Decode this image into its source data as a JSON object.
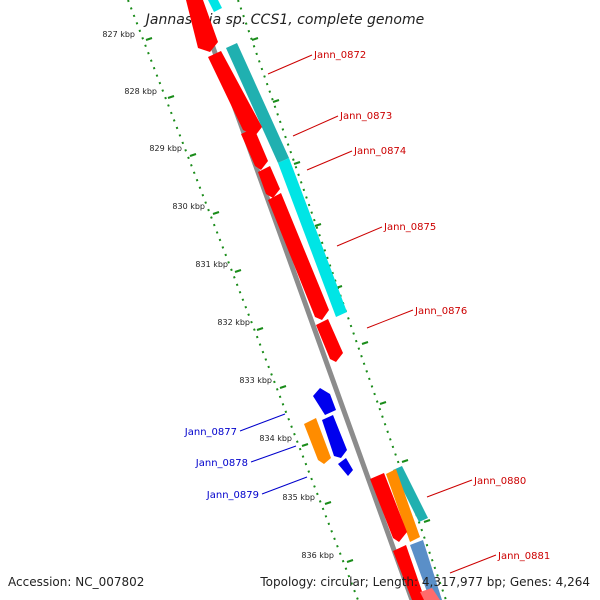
{
  "title": "Jannaschia sp. CCS1, complete genome",
  "footer": {
    "accession": "Accession: NC_007802",
    "summary": "Topology: circular; Length: 4,317,977 bp; Genes: 4,264"
  },
  "colors": {
    "background": "#ffffff",
    "backbone": "#8c8c8c",
    "tick_track": "#1a8c1a",
    "cds": "#ff0000",
    "cds_light": "#ff6b6b",
    "rna": "#0000ee",
    "orange": "#ff8c00",
    "cyan": "#00e5e5",
    "teal": "#20b0b0",
    "steelblue": "#5a8fc8",
    "label_red": "#cc0000",
    "label_blue": "#0000cc"
  },
  "ticks": [
    {
      "label": "827 kbp"
    },
    {
      "label": "828 kbp"
    },
    {
      "label": "829 kbp"
    },
    {
      "label": "830 kbp"
    },
    {
      "label": "831 kbp"
    },
    {
      "label": "832 kbp"
    },
    {
      "label": "833 kbp"
    },
    {
      "label": "834 kbp"
    },
    {
      "label": "835 kbp"
    },
    {
      "label": "836 kbp"
    }
  ],
  "genes_right": [
    {
      "name": "Jann_0872"
    },
    {
      "name": "Jann_0873"
    },
    {
      "name": "Jann_0874"
    },
    {
      "name": "Jann_0875"
    },
    {
      "name": "Jann_0876"
    },
    {
      "name": "Jann_0880"
    },
    {
      "name": "Jann_0881"
    }
  ],
  "genes_left": [
    {
      "name": "Jann_0877"
    },
    {
      "name": "Jann_0878"
    },
    {
      "name": "Jann_0879"
    }
  ]
}
